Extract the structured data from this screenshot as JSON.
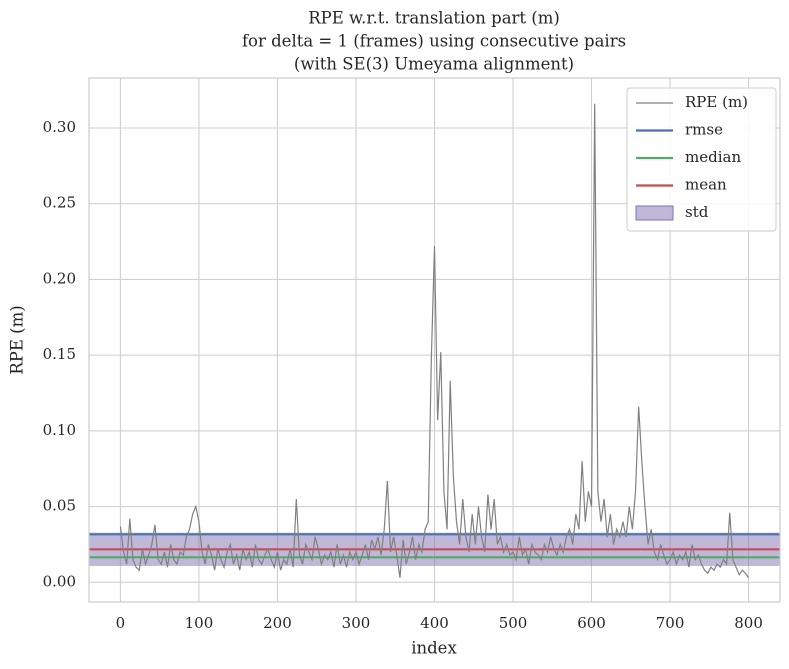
{
  "chart_data": {
    "type": "line",
    "title": [
      "RPE w.r.t. translation part (m)",
      "for delta = 1 (frames) using consecutive pairs",
      "(with SE(3) Umeyama alignment)"
    ],
    "x_label": "index",
    "y_label": "RPE (m)",
    "xlim": [
      -40,
      840
    ],
    "ylim": [
      -0.013,
      0.333
    ],
    "xticks": [
      0,
      100,
      200,
      300,
      400,
      500,
      600,
      700,
      800
    ],
    "yticks": [
      {
        "value": 0,
        "label": "0.00"
      },
      {
        "value": 0.05,
        "label": "0.05"
      },
      {
        "value": 0.1,
        "label": "0.10"
      },
      {
        "value": 0.15,
        "label": "0.15"
      },
      {
        "value": 0.2,
        "label": "0.20"
      },
      {
        "value": 0.25,
        "label": "0.25"
      },
      {
        "value": 0.3,
        "label": "0.30"
      }
    ],
    "grid": true,
    "legend": "upper right",
    "x": [
      0,
      4,
      8,
      12,
      16,
      20,
      24,
      28,
      32,
      36,
      40,
      44,
      48,
      52,
      56,
      60,
      64,
      68,
      72,
      76,
      80,
      84,
      88,
      92,
      96,
      100,
      104,
      108,
      112,
      116,
      120,
      124,
      128,
      132,
      136,
      140,
      144,
      148,
      152,
      156,
      160,
      164,
      168,
      172,
      176,
      180,
      184,
      188,
      192,
      196,
      200,
      204,
      208,
      212,
      216,
      220,
      224,
      228,
      232,
      236,
      240,
      244,
      248,
      252,
      256,
      260,
      264,
      268,
      272,
      276,
      280,
      284,
      288,
      292,
      296,
      300,
      304,
      308,
      312,
      316,
      320,
      324,
      328,
      332,
      336,
      340,
      344,
      348,
      352,
      356,
      360,
      364,
      368,
      372,
      376,
      380,
      384,
      388,
      392,
      396,
      400,
      404,
      408,
      412,
      416,
      420,
      424,
      428,
      432,
      436,
      440,
      444,
      448,
      452,
      456,
      460,
      464,
      468,
      472,
      476,
      480,
      484,
      488,
      492,
      496,
      500,
      504,
      508,
      512,
      516,
      520,
      524,
      528,
      532,
      536,
      540,
      544,
      548,
      552,
      556,
      560,
      564,
      568,
      572,
      576,
      580,
      584,
      588,
      592,
      596,
      600,
      604,
      608,
      612,
      616,
      620,
      624,
      628,
      632,
      636,
      640,
      644,
      648,
      652,
      656,
      660,
      664,
      668,
      672,
      676,
      680,
      684,
      688,
      692,
      696,
      700,
      704,
      708,
      712,
      716,
      720,
      724,
      728,
      732,
      736,
      740,
      744,
      748,
      752,
      756,
      760,
      764,
      768,
      772,
      776,
      780,
      784,
      788,
      792,
      796,
      800
    ],
    "series": [
      {
        "name": "RPE (m)",
        "color": "#808080",
        "values": [
          0.037,
          0.02,
          0.012,
          0.042,
          0.015,
          0.01,
          0.008,
          0.022,
          0.012,
          0.018,
          0.025,
          0.038,
          0.015,
          0.012,
          0.02,
          0.01,
          0.025,
          0.015,
          0.012,
          0.02,
          0.018,
          0.03,
          0.035,
          0.045,
          0.05,
          0.04,
          0.02,
          0.012,
          0.025,
          0.018,
          0.008,
          0.022,
          0.015,
          0.01,
          0.02,
          0.025,
          0.012,
          0.018,
          0.008,
          0.022,
          0.015,
          0.02,
          0.01,
          0.025,
          0.015,
          0.012,
          0.018,
          0.022,
          0.015,
          0.01,
          0.02,
          0.008,
          0.015,
          0.012,
          0.022,
          0.01,
          0.055,
          0.018,
          0.012,
          0.025,
          0.02,
          0.015,
          0.03,
          0.022,
          0.012,
          0.018,
          0.015,
          0.02,
          0.01,
          0.025,
          0.012,
          0.018,
          0.01,
          0.02,
          0.015,
          0.02,
          0.012,
          0.018,
          0.025,
          0.015,
          0.028,
          0.022,
          0.03,
          0.018,
          0.035,
          0.067,
          0.02,
          0.03,
          0.018,
          0.003,
          0.028,
          0.012,
          0.02,
          0.03,
          0.015,
          0.025,
          0.02,
          0.035,
          0.04,
          0.148,
          0.222,
          0.107,
          0.152,
          0.06,
          0.035,
          0.133,
          0.07,
          0.04,
          0.025,
          0.055,
          0.03,
          0.02,
          0.045,
          0.025,
          0.05,
          0.03,
          0.02,
          0.058,
          0.035,
          0.055,
          0.025,
          0.03,
          0.02,
          0.025,
          0.018,
          0.02,
          0.015,
          0.03,
          0.018,
          0.022,
          0.012,
          0.025,
          0.02,
          0.018,
          0.015,
          0.025,
          0.02,
          0.03,
          0.022,
          0.018,
          0.025,
          0.02,
          0.03,
          0.035,
          0.025,
          0.045,
          0.035,
          0.08,
          0.04,
          0.06,
          0.05,
          0.316,
          0.06,
          0.04,
          0.055,
          0.03,
          0.045,
          0.025,
          0.035,
          0.03,
          0.04,
          0.03,
          0.05,
          0.035,
          0.06,
          0.116,
          0.08,
          0.05,
          0.025,
          0.035,
          0.02,
          0.015,
          0.025,
          0.018,
          0.012,
          0.015,
          0.02,
          0.012,
          0.018,
          0.015,
          0.02,
          0.01,
          0.025,
          0.015,
          0.018,
          0.012,
          0.008,
          0.006,
          0.01,
          0.008,
          0.012,
          0.01,
          0.015,
          0.012,
          0.046,
          0.015,
          0.01,
          0.005,
          0.008,
          0.006,
          0.003
        ]
      }
    ],
    "stats": [
      {
        "name": "rmse",
        "color": "#4c72b0",
        "value": 0.0317
      },
      {
        "name": "median",
        "color": "#55a868",
        "value": 0.0165
      },
      {
        "name": "mean",
        "color": "#c44e52",
        "value": 0.0218
      },
      {
        "name": "std",
        "color": "#8172b2",
        "value": 0.011
      }
    ]
  }
}
